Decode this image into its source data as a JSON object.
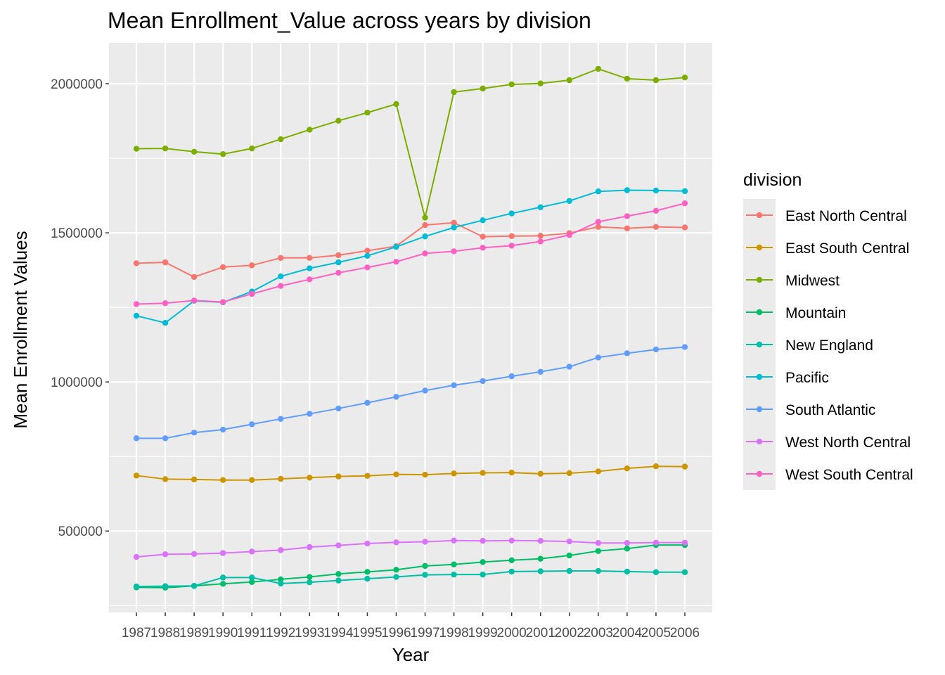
{
  "chart_data": {
    "type": "line",
    "title": "Mean Enrollment_Value across years by division",
    "xlabel": "Year",
    "ylabel": "Mean Enrollment Values",
    "legend_title": "division",
    "legend_position": "right",
    "grid": true,
    "ylim": [
      227000,
      2137000
    ],
    "y_ticks": [
      500000,
      1000000,
      1500000,
      2000000
    ],
    "y_tick_labels": [
      "500000",
      "1000000",
      "1500000",
      "2000000"
    ],
    "x": [
      1987,
      1988,
      1989,
      1990,
      1991,
      1992,
      1993,
      1994,
      1995,
      1996,
      1997,
      1998,
      1999,
      2000,
      2001,
      2002,
      2003,
      2004,
      2005,
      2006
    ],
    "x_tick_labels": [
      "1987",
      "1988",
      "1989",
      "1990",
      "1991",
      "1992",
      "1993",
      "1994",
      "1995",
      "1996",
      "1997",
      "1998",
      "1999",
      "2000",
      "2001",
      "2002",
      "2003",
      "2004",
      "2005",
      "2006"
    ],
    "series": [
      {
        "name": "East North Central",
        "color": "#F8766D",
        "values": [
          1398000,
          1401000,
          1352000,
          1385000,
          1391000,
          1416000,
          1416000,
          1425000,
          1440000,
          1455000,
          1526000,
          1534000,
          1487000,
          1489000,
          1490000,
          1499000,
          1520000,
          1515000,
          1520000,
          1518000
        ]
      },
      {
        "name": "East South Central",
        "color": "#CD9600",
        "values": [
          686000,
          674000,
          673000,
          671000,
          671000,
          675000,
          679000,
          683000,
          685000,
          690000,
          689000,
          693000,
          695000,
          696000,
          692000,
          694000,
          700000,
          710000,
          717000,
          716000
        ]
      },
      {
        "name": "Midwest",
        "color": "#7CAE00",
        "values": [
          1782000,
          1783000,
          1772000,
          1764000,
          1783000,
          1814000,
          1846000,
          1876000,
          1903000,
          1932000,
          1551000,
          1972000,
          1984000,
          1998000,
          2001000,
          2012000,
          2050000,
          2017000,
          2012000,
          2021000
        ]
      },
      {
        "name": "Mountain",
        "color": "#00BE67",
        "values": [
          311000,
          310000,
          316000,
          323000,
          329000,
          338000,
          346000,
          356000,
          363000,
          370000,
          383000,
          388000,
          396000,
          402000,
          407000,
          418000,
          433000,
          441000,
          453000,
          453000
        ]
      },
      {
        "name": "New England",
        "color": "#00BFA6",
        "values": [
          314000,
          315000,
          316000,
          344000,
          344000,
          324000,
          328000,
          334000,
          340000,
          346000,
          353000,
          354000,
          354000,
          364000,
          365000,
          366000,
          366000,
          364000,
          362000,
          362000
        ]
      },
      {
        "name": "Pacific",
        "color": "#00BCD8",
        "values": [
          1222000,
          1198000,
          1272000,
          1267000,
          1303000,
          1354000,
          1381000,
          1401000,
          1423000,
          1453000,
          1488000,
          1518000,
          1542000,
          1565000,
          1586000,
          1607000,
          1639000,
          1643000,
          1642000,
          1640000
        ]
      },
      {
        "name": "South Atlantic",
        "color": "#619CFF",
        "values": [
          811000,
          811000,
          830000,
          840000,
          858000,
          876000,
          893000,
          911000,
          930000,
          950000,
          971000,
          989000,
          1003000,
          1019000,
          1034000,
          1051000,
          1082000,
          1096000,
          1109000,
          1117000
        ]
      },
      {
        "name": "West North Central",
        "color": "#DB72FB",
        "values": [
          413000,
          422000,
          423000,
          426000,
          431000,
          436000,
          446000,
          452000,
          458000,
          462000,
          464000,
          468000,
          467000,
          468000,
          467000,
          465000,
          460000,
          460000,
          461000,
          461000
        ]
      },
      {
        "name": "West South Central",
        "color": "#FF61C3",
        "values": [
          1261000,
          1264000,
          1273000,
          1268000,
          1295000,
          1322000,
          1344000,
          1366000,
          1384000,
          1403000,
          1431000,
          1438000,
          1450000,
          1457000,
          1471000,
          1493000,
          1537000,
          1556000,
          1574000,
          1599000
        ]
      }
    ]
  }
}
